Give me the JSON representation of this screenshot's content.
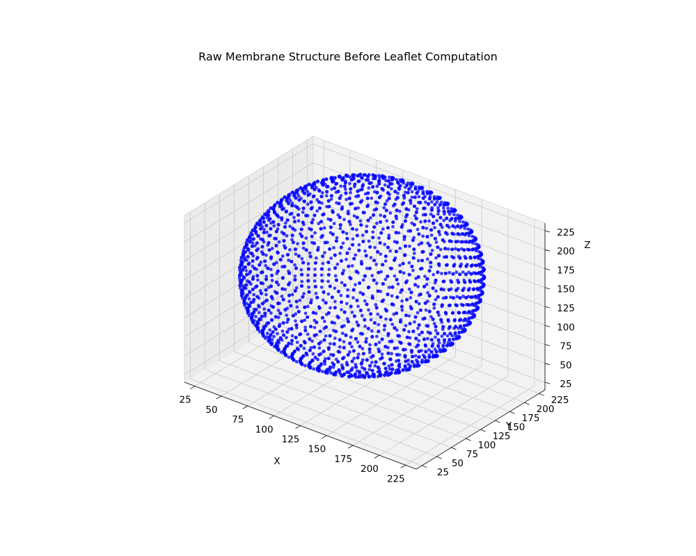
{
  "chart_data": {
    "type": "scatter",
    "subtype": "3d-scatter",
    "title": "Raw Membrane Structure Before Leaflet Computation",
    "xlabel": "X",
    "ylabel": "Y",
    "zlabel": "Z",
    "x_ticks": [
      "25",
      "50",
      "75",
      "100",
      "125",
      "150",
      "175",
      "200",
      "225"
    ],
    "y_ticks": [
      "25",
      "50",
      "75",
      "100",
      "125",
      "150",
      "175",
      "200",
      "225"
    ],
    "z_ticks": [
      "25",
      "50",
      "75",
      "100",
      "125",
      "150",
      "175",
      "200",
      "225"
    ],
    "xlim": [
      15,
      235
    ],
    "ylim": [
      15,
      235
    ],
    "zlim": [
      15,
      235
    ],
    "grid": true,
    "pane_color": "#f2f2f2",
    "grid_color": "#cccccc",
    "series": [
      {
        "shape": "sphere",
        "center": [
          125,
          125,
          125
        ],
        "radius": 100,
        "approx_points": 1800,
        "color": "#0000ff"
      }
    ]
  }
}
